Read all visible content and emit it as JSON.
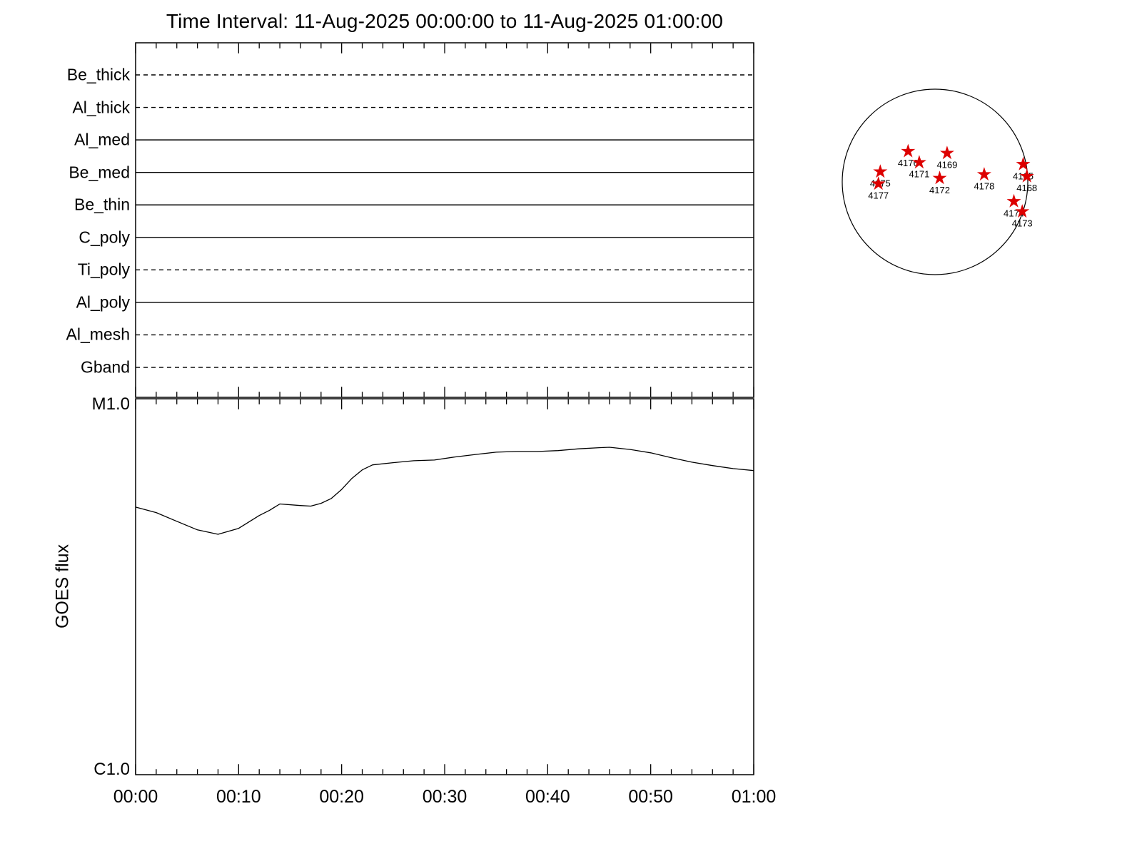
{
  "title": "Time Interval: 11-Aug-2025 00:00:00 to 11-Aug-2025 01:00:00",
  "colors": {
    "foreground": "#000000",
    "background": "#ffffff",
    "active_region_star": "#dd0000"
  },
  "filter_timeline": {
    "filters": [
      {
        "name": "Be_thick",
        "line_style": "dashed"
      },
      {
        "name": "Al_thick",
        "line_style": "dashed"
      },
      {
        "name": "Al_med",
        "line_style": "solid"
      },
      {
        "name": "Be_med",
        "line_style": "solid"
      },
      {
        "name": "Be_thin",
        "line_style": "solid"
      },
      {
        "name": "C_poly",
        "line_style": "solid"
      },
      {
        "name": "Ti_poly",
        "line_style": "dashed"
      },
      {
        "name": "Al_poly",
        "line_style": "solid"
      },
      {
        "name": "Al_mesh",
        "line_style": "dashed"
      },
      {
        "name": "Gband",
        "line_style": "dashed"
      }
    ]
  },
  "goes": {
    "ylabel": "GOES flux",
    "y_top_label": "M1.0",
    "y_bottom_label": "C1.0"
  },
  "chart_data": [
    {
      "type": "line",
      "title": "Time Interval: 11-Aug-2025 00:00:00 to 11-Aug-2025 01:00:00",
      "xlabel": "",
      "ylabel": "GOES flux",
      "x_tick_labels": [
        "00:00",
        "00:10",
        "00:20",
        "00:30",
        "00:40",
        "00:50",
        "01:00"
      ],
      "xlim_minutes": [
        0,
        60
      ],
      "yscale": "log",
      "ylim_wm2": [
        1e-06,
        1e-05
      ],
      "y_tick_labels": [
        "C1.0",
        "M1.0"
      ],
      "grid": false,
      "series": [
        {
          "name": "GOES flux",
          "x_minutes": [
            0,
            2,
            4,
            6,
            8,
            10,
            12,
            13,
            14,
            16,
            17,
            18,
            19,
            20,
            21,
            22,
            23,
            25,
            27,
            29,
            31,
            33,
            35,
            37,
            39,
            41,
            43,
            45,
            46,
            48,
            50,
            52,
            54,
            56,
            58,
            60
          ],
          "flux_wm2": [
            5.15e-06,
            4.98e-06,
            4.72e-06,
            4.48e-06,
            4.36e-06,
            4.52e-06,
            4.89e-06,
            5.05e-06,
            5.25e-06,
            5.2e-06,
            5.18e-06,
            5.27e-06,
            5.43e-06,
            5.74e-06,
            6.14e-06,
            6.47e-06,
            6.67e-06,
            6.76e-06,
            6.84e-06,
            6.87e-06,
            7e-06,
            7.11e-06,
            7.21e-06,
            7.24e-06,
            7.24e-06,
            7.28e-06,
            7.36e-06,
            7.41e-06,
            7.43e-06,
            7.33e-06,
            7.18e-06,
            6.97e-06,
            6.78e-06,
            6.64e-06,
            6.52e-06,
            6.44e-06
          ]
        }
      ]
    },
    {
      "type": "timeline",
      "rows": [
        "Be_thick",
        "Al_thick",
        "Al_med",
        "Be_med",
        "Be_thin",
        "C_poly",
        "Ti_poly",
        "Al_poly",
        "Al_mesh",
        "Gband"
      ],
      "row_styles": [
        "dashed",
        "dashed",
        "solid",
        "solid",
        "solid",
        "solid",
        "dashed",
        "solid",
        "dashed",
        "dashed"
      ]
    }
  ],
  "solar_disk": {
    "active_regions": [
      {
        "label": "4176",
        "rx": -0.29,
        "ry": -0.33
      },
      {
        "label": "4171",
        "rx": -0.17,
        "ry": -0.21
      },
      {
        "label": "4169",
        "rx": 0.13,
        "ry": -0.31
      },
      {
        "label": "4175",
        "rx": -0.59,
        "ry": -0.11
      },
      {
        "label": "4177",
        "rx": -0.61,
        "ry": 0.02
      },
      {
        "label": "4172",
        "rx": 0.05,
        "ry": -0.04
      },
      {
        "label": "4178",
        "rx": 0.53,
        "ry": -0.08
      },
      {
        "label": "4165",
        "rx": 0.95,
        "ry": -0.19
      },
      {
        "label": "4168",
        "rx": 0.99,
        "ry": -0.06
      },
      {
        "label": "4174",
        "rx": 0.85,
        "ry": 0.21
      },
      {
        "label": "4173",
        "rx": 0.94,
        "ry": 0.32
      }
    ]
  }
}
